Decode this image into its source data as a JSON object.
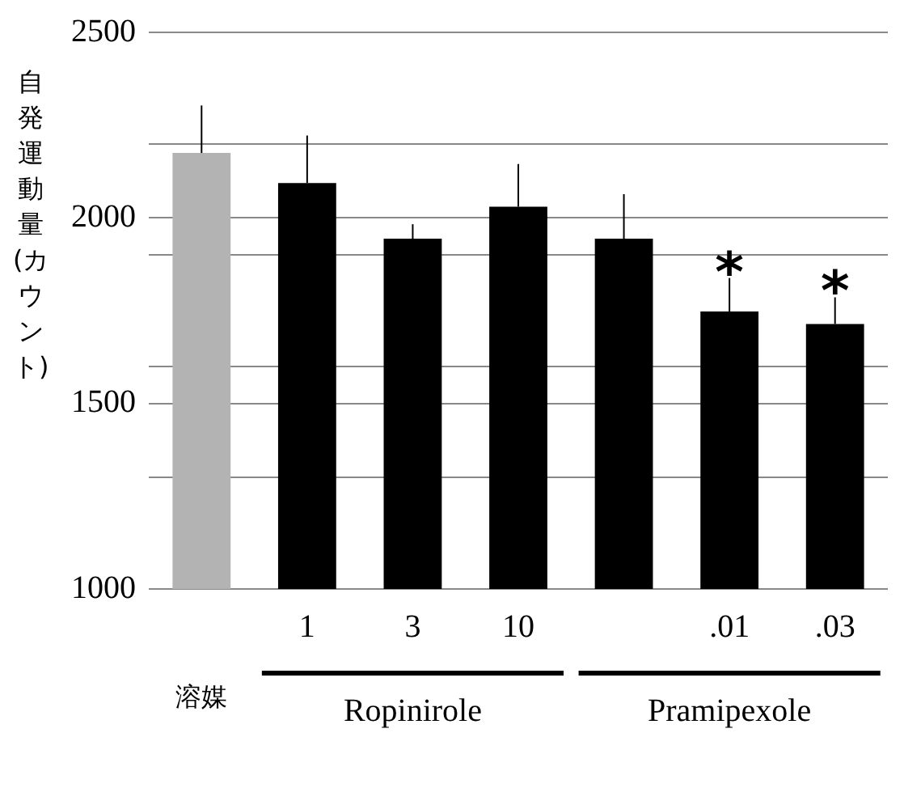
{
  "chart_data": {
    "type": "bar",
    "ylabel": "自発運動量(カウント)",
    "categories": [
      null,
      "1",
      "3",
      "10",
      null,
      ".01",
      ".03"
    ],
    "values": [
      2175,
      2094,
      1944,
      2030,
      1944,
      1748,
      1714
    ],
    "colors": [
      "#b3b3b3",
      "#000000",
      "#000000",
      "#000000",
      "#000000",
      "#000000",
      "#000000"
    ],
    "errors": [
      [
        2175,
        2303
      ],
      [
        2094,
        2222
      ],
      [
        1944,
        1983
      ],
      [
        2030,
        2145
      ],
      [
        1944,
        2064
      ],
      [
        1748,
        1838
      ],
      [
        1714,
        1786
      ]
    ],
    "ylim": [
      1000,
      2500
    ],
    "yticks": [
      1000,
      {
        "value": 1300,
        "label": null
      },
      1500,
      {
        "value": 1600,
        "label": null
      },
      {
        "value": 1900,
        "label": null
      },
      2000,
      {
        "value": 2200,
        "label": null
      },
      2500
    ],
    "grid": "y",
    "legend": false,
    "annotations": [
      {
        "text": "*",
        "x": ".01",
        "y": 1838
      },
      {
        "text": "*",
        "x": ".03",
        "y": 1786
      },
      "溶媒",
      "Ropinirole",
      "Pramipexole"
    ]
  }
}
